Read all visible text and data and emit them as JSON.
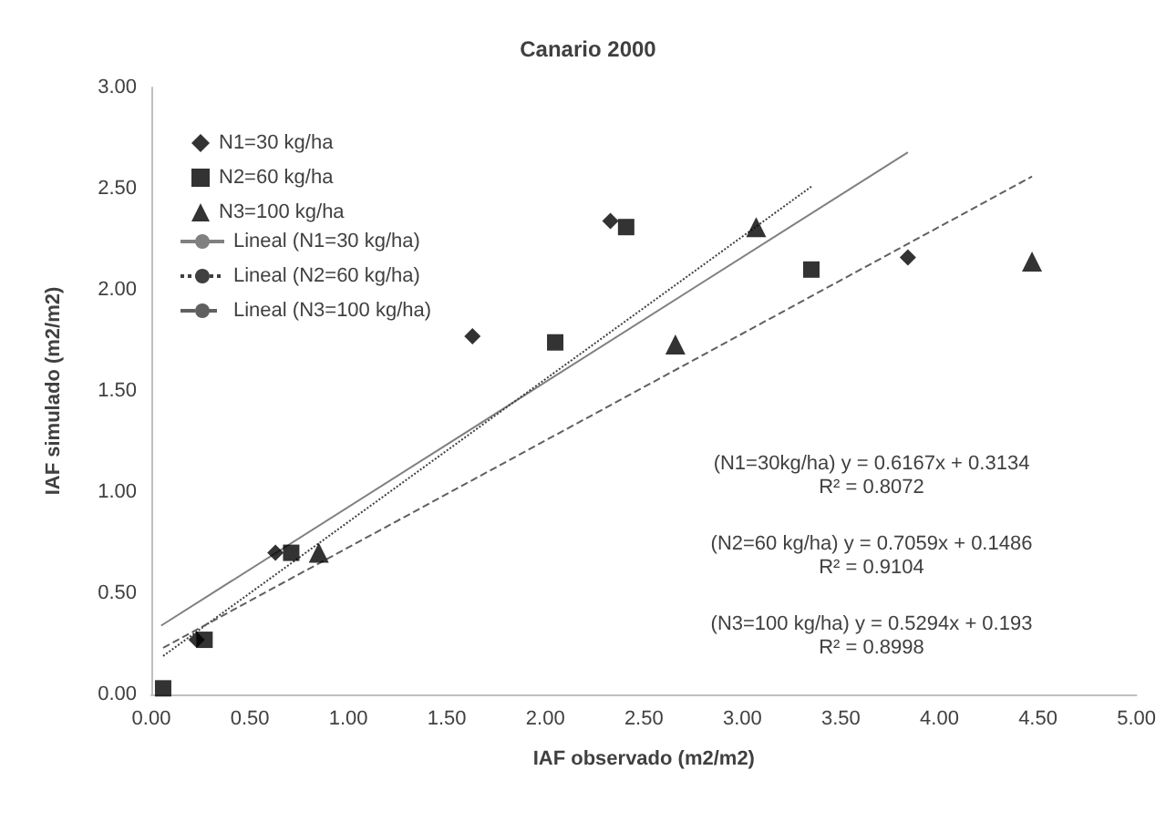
{
  "chart_data": {
    "type": "scatter",
    "title": "Canario 2000",
    "xlabel": "IAF observado (m2/m2)",
    "ylabel": "IAF simulado (m2/m2)",
    "xlim": [
      0,
      5
    ],
    "xticks": [
      {
        "value": 0,
        "label": "0.00"
      },
      {
        "value": 0.5,
        "label": "0.50"
      },
      {
        "value": 1,
        "label": "1.00"
      },
      {
        "value": 1.5,
        "label": "1.50"
      },
      {
        "value": 2,
        "label": "2.00"
      },
      {
        "value": 2.5,
        "label": "2.50"
      },
      {
        "value": 3,
        "label": "3.00"
      },
      {
        "value": 3.5,
        "label": "3.50"
      },
      {
        "value": 4,
        "label": "4.00"
      },
      {
        "value": 4.5,
        "label": "4.50"
      },
      {
        "value": 5,
        "label": "5.00"
      }
    ],
    "ylim": [
      0,
      3
    ],
    "yticks": [
      {
        "value": 0,
        "label": "0.00"
      },
      {
        "value": 0.5,
        "label": "0.50"
      },
      {
        "value": 1,
        "label": "1.00"
      },
      {
        "value": 1.5,
        "label": "1.50"
      },
      {
        "value": 2,
        "label": "2.00"
      },
      {
        "value": 2.5,
        "label": "2.50"
      },
      {
        "value": 3,
        "label": "3.00"
      }
    ],
    "grid": false,
    "legend": "top left",
    "series": [
      {
        "name": "N1=30 kg/ha",
        "color": "#000000",
        "marker": "diamond",
        "x": [
          0.23,
          0.63,
          1.63,
          2.33,
          3.84
        ],
        "values": [
          0.27,
          0.7,
          1.77,
          2.34,
          2.16
        ]
      },
      {
        "name": "N2=60 kg/ha",
        "color": "#000000",
        "marker": "square",
        "x": [
          0.06,
          0.27,
          0.71,
          2.05,
          2.41,
          3.35
        ],
        "values": [
          0.03,
          0.27,
          0.7,
          1.74,
          2.31,
          2.1
        ]
      },
      {
        "name": "N3=100 kg/ha",
        "color": "#000000",
        "marker": "triangle",
        "x": [
          0.85,
          2.66,
          3.07,
          4.47
        ],
        "values": [
          0.7,
          1.73,
          2.31,
          2.14
        ]
      },
      {
        "name": "Lineal (N1=30 kg/ha)",
        "type": "line",
        "color": "#808080",
        "line_style": "solid",
        "marker": "none",
        "x": [
          0.05,
          3.84
        ],
        "values": [
          0.34,
          2.68
        ]
      },
      {
        "name": "Lineal (N2=60 kg/ha)",
        "type": "line",
        "color": "#404040",
        "line_style": "dotted",
        "marker": "none",
        "x": [
          0.06,
          3.35
        ],
        "values": [
          0.19,
          2.51
        ]
      },
      {
        "name": "Lineal (N3=100 kg/ha)",
        "type": "line",
        "color": "#606060",
        "line_style": "dashed",
        "marker": "none",
        "x": [
          0.06,
          4.47
        ],
        "values": [
          0.23,
          2.56
        ]
      }
    ],
    "annotations": [
      "(N1=30kg/ha) y = 0.6167x + 0.3134\nR² = 0.8072",
      "(N2=60 kg/ha) y = 0.7059x + 0.1486\nR² = 0.9104",
      "(N3=100 kg/ha) y = 0.5294x + 0.193\nR² = 0.8998"
    ]
  }
}
